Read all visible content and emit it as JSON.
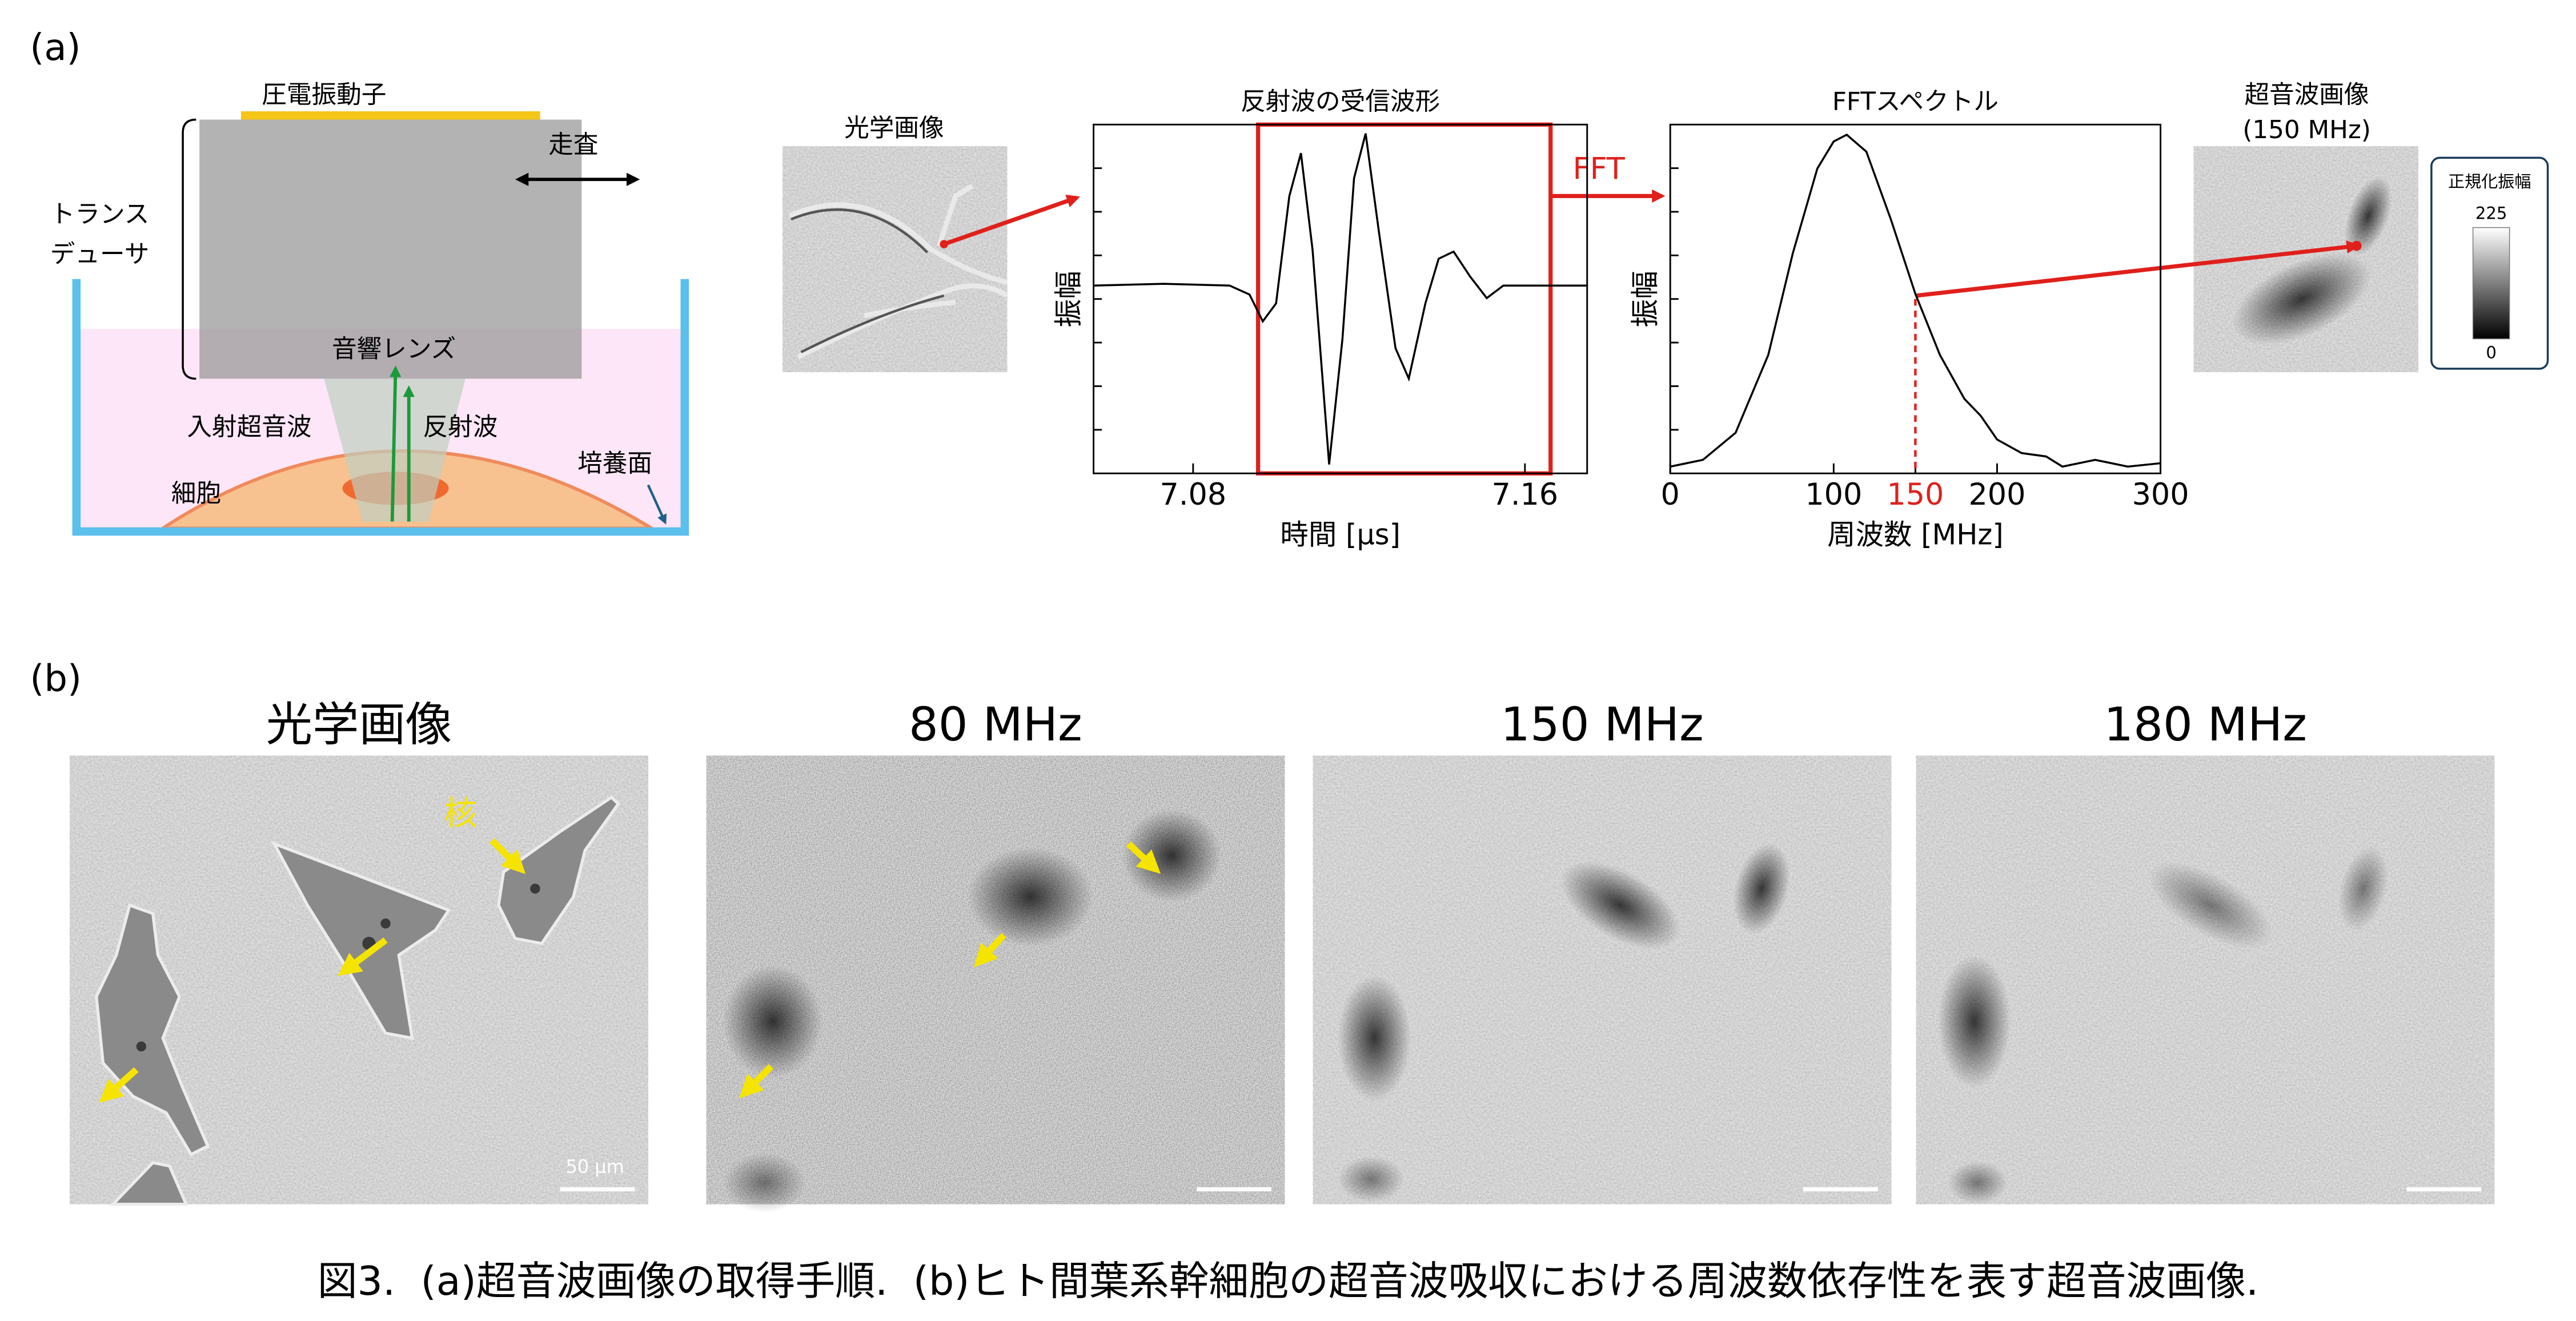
{
  "panel_a": {
    "label": "(a)",
    "schematic": {
      "piezo": "圧電振動子",
      "scan": "走査",
      "transducer": [
        "トランス",
        "デューサ"
      ],
      "lens": "音響レンズ",
      "incident": "入射超音波",
      "reflected": "反射波",
      "cell": "細胞",
      "surface": "培養面"
    },
    "optical_title": "光学画像",
    "fft_label": "FFT",
    "waveform": {
      "type": "line",
      "title": "反射波の受信波形",
      "y_label": "振幅",
      "x_label": "時間 [μs]",
      "x": [
        7.056,
        7.0728,
        7.0888,
        7.0936,
        7.0968,
        7.1,
        7.1032,
        7.106,
        7.1088,
        7.1128,
        7.116,
        7.1188,
        7.1216,
        7.1248,
        7.1288,
        7.132,
        7.136,
        7.1392,
        7.1428,
        7.1468,
        7.1508,
        7.1548,
        7.1748
      ],
      "values": [
        0,
        0.01,
        0,
        -0.05,
        -0.2,
        -0.1,
        0.5,
        0.74,
        0.2,
        -1.0,
        -0.3,
        0.6,
        0.85,
        0.3,
        -0.35,
        -0.52,
        -0.1,
        0.15,
        0.19,
        0.05,
        -0.07,
        0,
        0
      ],
      "color": "#000000",
      "xlim": [
        7.056,
        7.175
      ],
      "ylim": [
        -1.05,
        0.9
      ],
      "xticks": [
        7.08,
        7.16
      ]
    },
    "spectrum": {
      "type": "line",
      "title": "FFTスペクトル",
      "y_label": "振幅",
      "x_label": "周波数 [MHz]",
      "x": [
        0,
        20,
        40,
        60,
        75,
        90,
        100,
        108,
        120,
        135,
        150,
        165,
        180,
        190,
        200,
        215,
        230,
        240,
        260,
        280,
        300
      ],
      "values": [
        0.02,
        0.04,
        0.12,
        0.35,
        0.65,
        0.9,
        0.98,
        1.0,
        0.95,
        0.75,
        0.53,
        0.35,
        0.22,
        0.17,
        0.1,
        0.06,
        0.05,
        0.02,
        0.04,
        0.02,
        0.03
      ],
      "color": "#000000",
      "xlim": [
        0,
        300
      ],
      "ylim": [
        0,
        1.03
      ],
      "xticks": [
        0,
        100,
        150,
        200,
        300
      ],
      "tick_colors": [
        "#000000",
        "#000000",
        "#e0201b",
        "#000000",
        "#000000"
      ]
    },
    "ultrasound_title": [
      "超音波画像",
      "(150 MHz)"
    ],
    "colorbar": {
      "label": "正規化振幅",
      "ticks": [
        225,
        0
      ]
    }
  },
  "panel_b": {
    "label": "(b)",
    "titles": [
      "光学画像",
      "80 MHz",
      "150 MHz",
      "180 MHz"
    ],
    "nucleus_label": "核",
    "scale_bar": "50 μm"
  },
  "caption": "図3.  (a)超音波画像の取得手順.  (b)ヒト間葉系幹細胞の超音波吸収における周波数依存性を表す超音波画像."
}
